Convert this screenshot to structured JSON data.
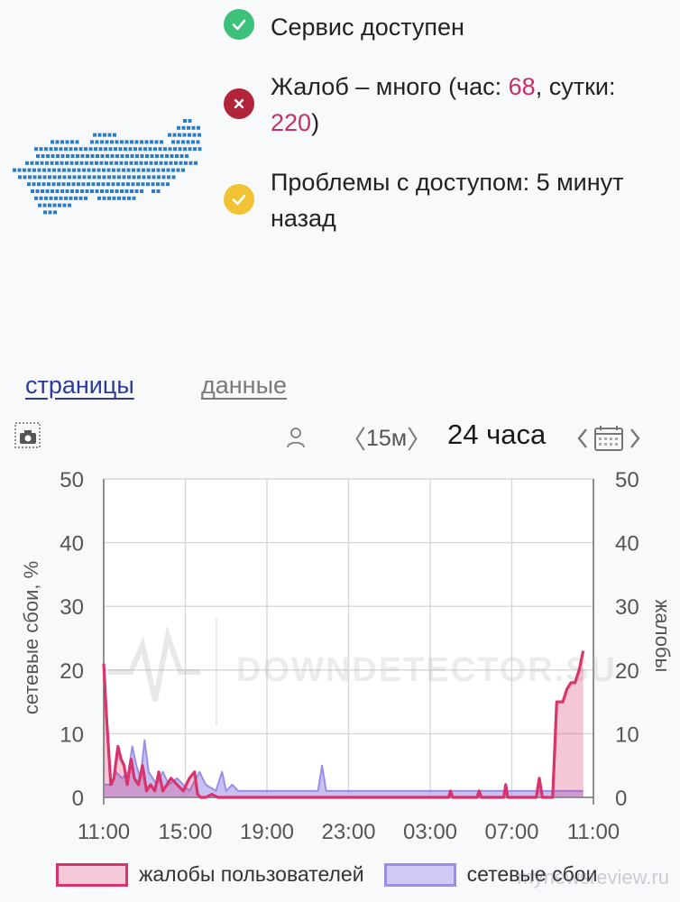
{
  "status": {
    "service": {
      "text": "Сервис доступен",
      "icon": "check-icon",
      "color": "#3cc07a"
    },
    "complaints": {
      "text_before": "Жалоб – много (час: ",
      "hour_count": "68",
      "text_middle": ", сутки: ",
      "day_count": "220",
      "text_after": ")",
      "icon": "cross-icon",
      "color": "#b3243a"
    },
    "problems": {
      "text": "Проблемы с доступом: 5 минут назад",
      "icon": "warning-icon",
      "color": "#f1c232"
    }
  },
  "tabs": {
    "pages": "страницы",
    "data": "данные"
  },
  "toolbar": {
    "period_label": "15м",
    "range_label": "24 часа"
  },
  "colors": {
    "complaints": "#d9336d",
    "failures": "#9a8fe8",
    "number_accent": "#c62f6a"
  },
  "chart_data": {
    "type": "area",
    "x_ticks": [
      "11:00",
      "15:00",
      "19:00",
      "23:00",
      "03:00",
      "07:00",
      "11:00"
    ],
    "y_ticks": [
      "0",
      "10",
      "20",
      "30",
      "40",
      "50"
    ],
    "ylim": [
      0,
      50
    ],
    "xlim_hours": [
      0,
      24
    ],
    "ylabel_left": "сетевые сбои, %",
    "ylabel_right": "жалобы",
    "watermark": "DOWNDETECTOR.SU",
    "grid": true,
    "legend_position": "bottom",
    "series": [
      {
        "name": "жалобы пользователей",
        "color": "#d9336d",
        "x": [
          0,
          0.15,
          0.35,
          0.5,
          0.7,
          0.85,
          1.0,
          1.15,
          1.35,
          1.5,
          1.7,
          1.9,
          2.1,
          2.3,
          2.5,
          2.7,
          2.9,
          3.1,
          3.3,
          3.6,
          3.9,
          4.2,
          4.45,
          4.6,
          4.75,
          5.0,
          5.3,
          5.6,
          6.0,
          8,
          12,
          16,
          16.9,
          17,
          17.1,
          17.5,
          18.3,
          18.4,
          18.5,
          19,
          19.6,
          19.7,
          19.8,
          20.5,
          21.2,
          21.35,
          21.5,
          22.0,
          22.2,
          22.5,
          22.7,
          22.9,
          23.1,
          23.3,
          23.5
        ],
        "y": [
          21,
          12,
          2,
          3,
          8,
          6,
          5,
          2,
          6,
          3,
          2,
          5,
          1,
          2,
          1,
          4,
          1,
          2,
          3,
          2,
          1,
          3,
          4,
          0.5,
          0,
          0,
          0.5,
          0,
          0,
          0,
          0,
          0,
          0,
          1,
          0,
          0,
          0,
          1,
          0,
          0,
          0,
          2,
          0,
          0,
          0,
          3,
          0,
          0,
          15,
          15,
          17,
          18,
          18,
          20,
          23
        ]
      },
      {
        "name": "сетевые сбои",
        "color": "#9a8fe8",
        "x": [
          0,
          0.4,
          0.6,
          0.9,
          1.2,
          1.4,
          1.6,
          1.8,
          2.0,
          2.2,
          2.4,
          2.6,
          2.9,
          3.2,
          3.6,
          3.9,
          4.2,
          4.7,
          5.0,
          5.5,
          5.8,
          6.0,
          6.3,
          6.6,
          7.0,
          8,
          9,
          10,
          10.5,
          10.7,
          10.9,
          11.2,
          11.6,
          12,
          13,
          14,
          15,
          16,
          17,
          18,
          19,
          20,
          21,
          21.5,
          22,
          22.5,
          23,
          23.5
        ],
        "y": [
          2,
          2,
          4,
          3,
          4,
          8,
          5,
          3,
          9,
          4,
          3,
          2,
          4,
          2,
          3,
          2,
          1,
          4,
          2,
          1,
          4,
          1,
          2,
          1,
          1,
          1,
          1,
          1,
          1,
          5,
          1,
          1,
          1,
          1,
          1,
          1,
          1,
          1,
          1,
          1,
          1,
          1,
          1,
          1,
          1,
          1,
          1,
          1
        ]
      }
    ]
  },
  "footer": {
    "watermark": "mynewsreview.ru"
  }
}
